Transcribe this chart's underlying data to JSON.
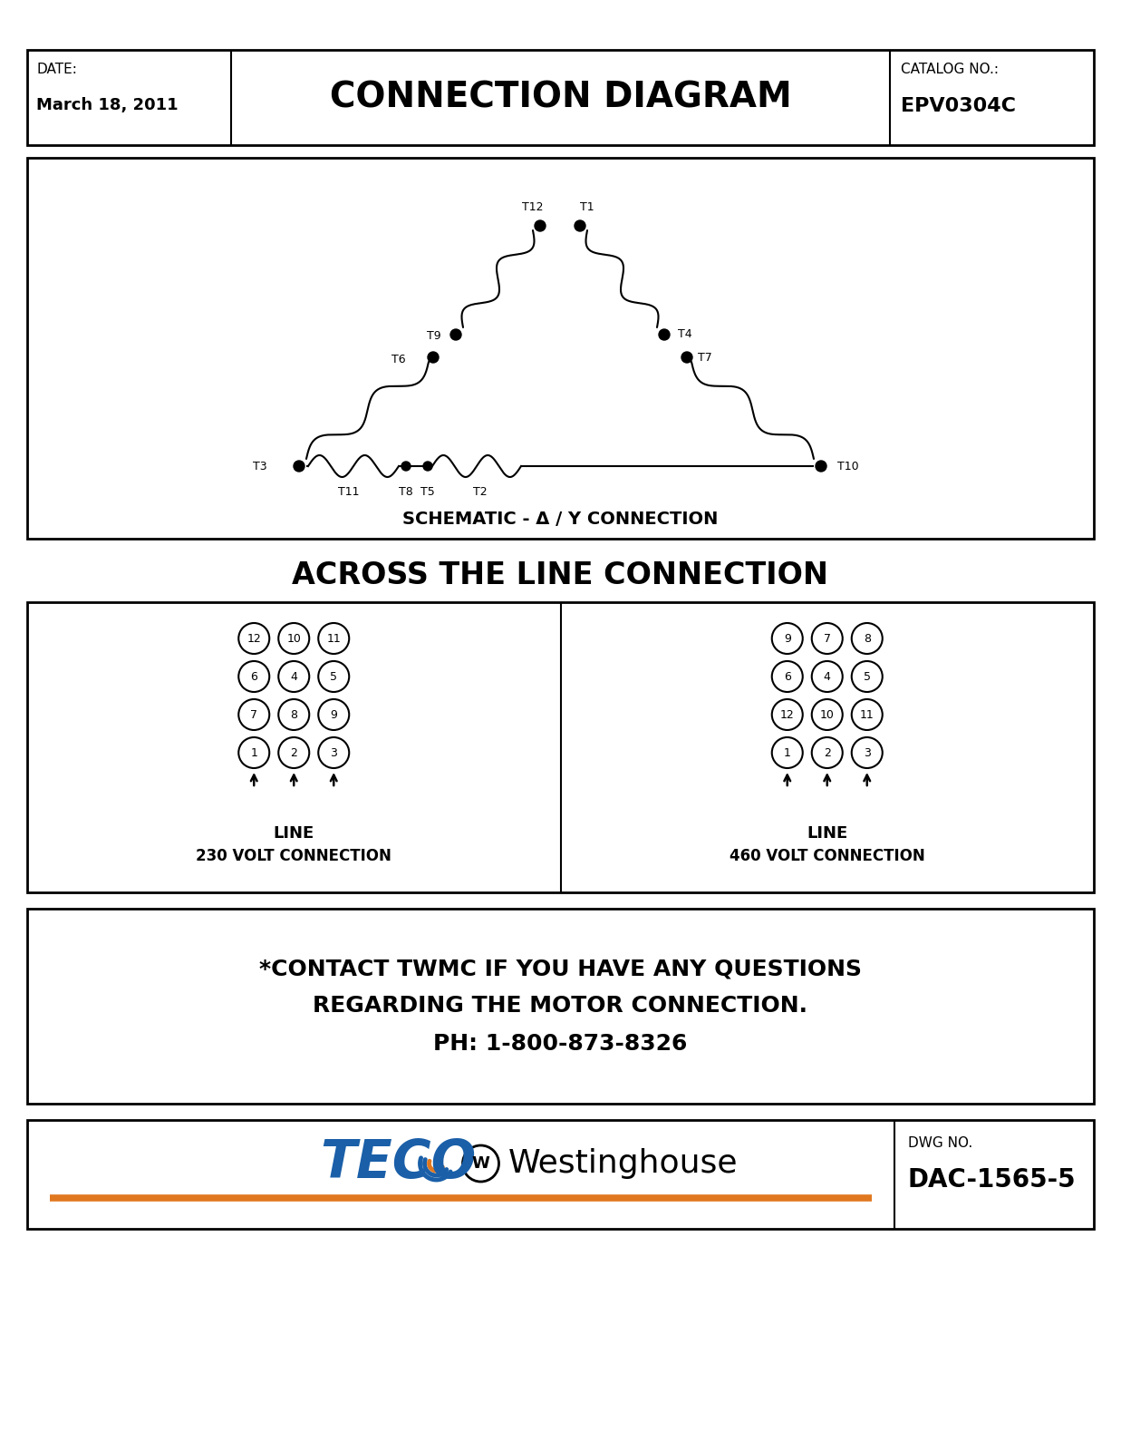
{
  "title_header": "CONNECTION DIAGRAM",
  "date_label": "DATE:",
  "date_value": "March 18, 2011",
  "catalog_label": "CATALOG NO.:",
  "catalog_value": "EPV0304C",
  "schematic_title": "SCHEMATIC - Δ / Y CONNECTION",
  "across_title": "ACROSS THE LINE CONNECTION",
  "line_230_label": "LINE\n230 VOLT CONNECTION",
  "line_460_label": "LINE\n460 VOLT CONNECTION",
  "contact_text": "*CONTACT TWMC IF YOU HAVE ANY QUESTIONS\nREGARDING THE MOTOR CONNECTION.\nPH: 1-800-873-8326",
  "dwg_label": "DWG NO.",
  "dwg_value": "DAC-1565-5",
  "teco_color": "#1a5fa8",
  "orange_color": "#e07820",
  "bg_color": "#ffffff",
  "border_color": "#000000"
}
